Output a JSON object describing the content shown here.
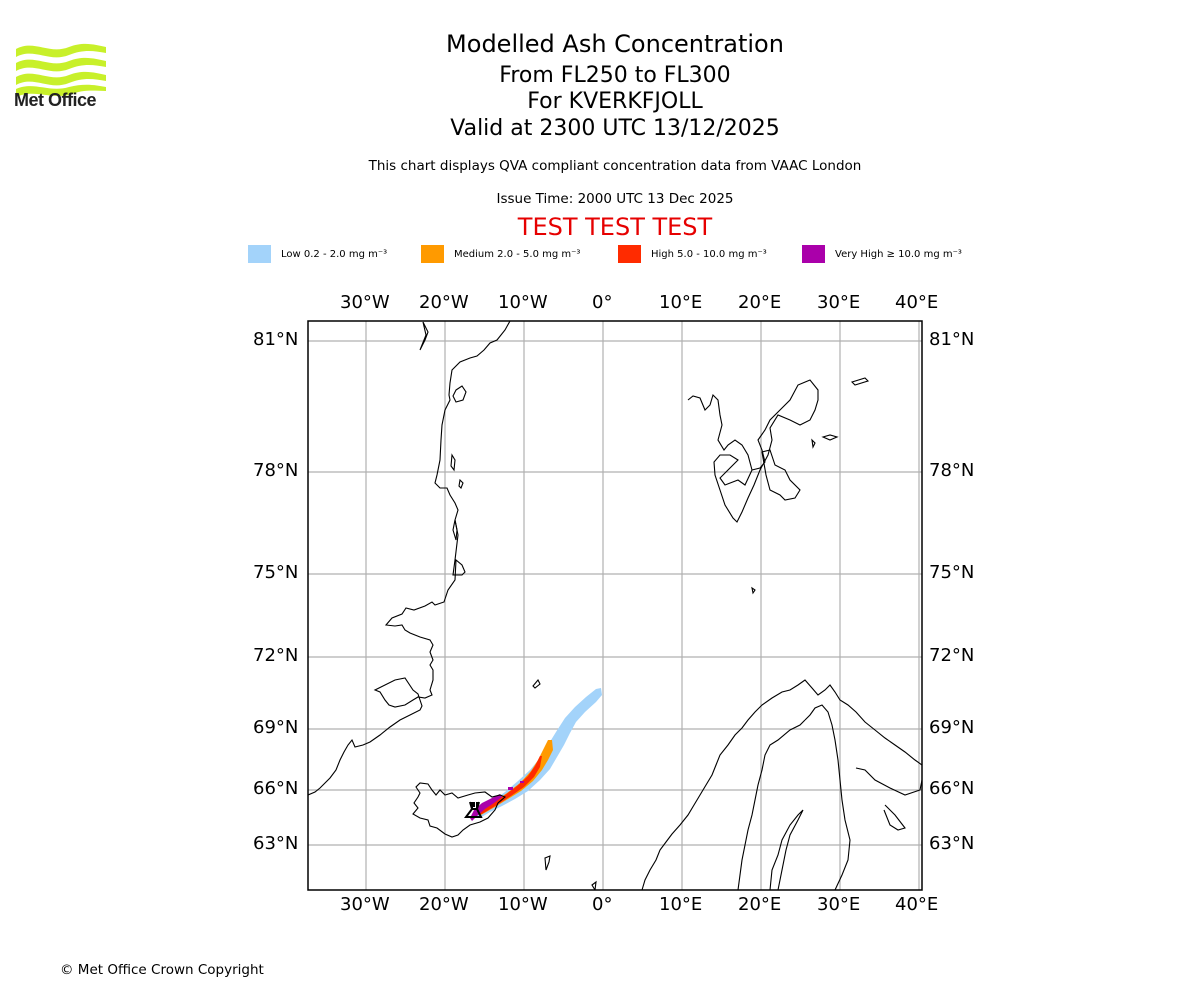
{
  "logo": {
    "name": "Met Office",
    "color": "#c8f02a"
  },
  "header": {
    "title": "Modelled Ash Concentration",
    "levels": "From FL250 to FL300",
    "volcano": "For KVERKFJOLL",
    "valid": "Valid at 2300 UTC 13/12/2025",
    "description": "This chart displays QVA compliant concentration data from VAAC London",
    "issue_time": "Issue Time: 2000 UTC 13 Dec 2025",
    "test_banner": "TEST TEST TEST"
  },
  "legend": [
    {
      "label": "Low 0.2 - 2.0 mg m⁻³",
      "color": "#a3d3fa"
    },
    {
      "label": "Medium 2.0 - 5.0 mg m⁻³",
      "color": "#ff9a00"
    },
    {
      "label": "High 5.0 - 10.0 mg m⁻³",
      "color": "#ff2b00"
    },
    {
      "label": "Very High ≥ 10.0 mg m⁻³",
      "color": "#aa00aa"
    }
  ],
  "map": {
    "lon_labels": [
      "30°W",
      "20°W",
      "10°W",
      "0°",
      "10°E",
      "20°E",
      "30°E",
      "40°E"
    ],
    "lat_labels": [
      "81°N",
      "78°N",
      "75°N",
      "72°N",
      "69°N",
      "66°N",
      "63°N"
    ],
    "volcano_symbol": "volcano-icon",
    "regions": [
      "Greenland",
      "Svalbard",
      "Iceland",
      "Scandinavia"
    ]
  },
  "footer": {
    "copyright": "© Met Office Crown Copyright"
  }
}
